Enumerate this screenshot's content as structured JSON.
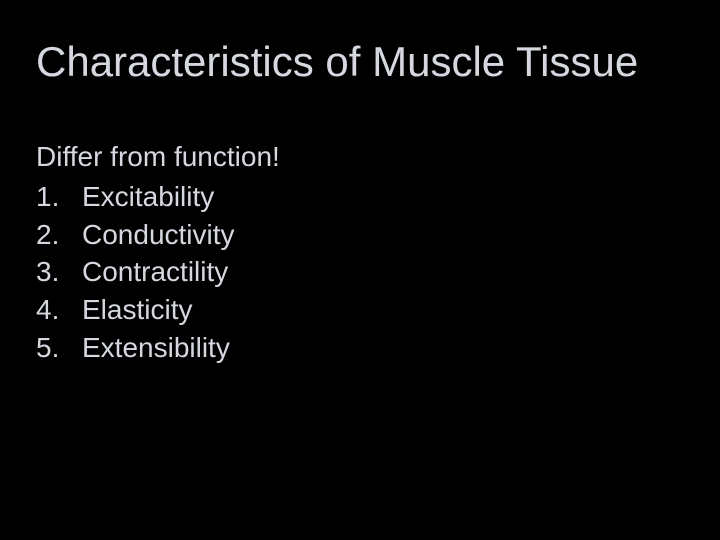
{
  "slide": {
    "background_color": "#000000",
    "text_color": "#d6d8e0",
    "title": {
      "text": "Characteristics of Muscle Tissue",
      "fontsize": 42,
      "fontweight": 400
    },
    "body": {
      "lead": "Differ from function!",
      "fontsize": 28,
      "items": [
        {
          "num": "1.",
          "text": "Excitability"
        },
        {
          "num": "2.",
          "text": "Conductivity"
        },
        {
          "num": "3.",
          "text": "Contractility"
        },
        {
          "num": "4.",
          "text": "Elasticity"
        },
        {
          "num": "5.",
          "text": "Extensibility"
        }
      ]
    }
  }
}
